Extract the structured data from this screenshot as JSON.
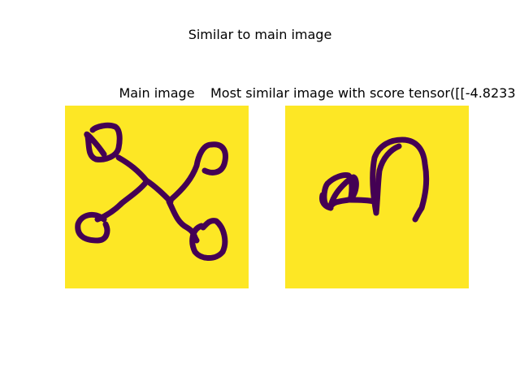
{
  "figure": {
    "suptitle": "Similar to main image"
  },
  "panels": [
    {
      "title": "Main image",
      "glyph": "main-glyph"
    },
    {
      "title": "Most similar image with score tensor([[-4.8233",
      "glyph": "similar-glyph"
    }
  ],
  "colors": {
    "background": "#fde725",
    "stroke": "#440154",
    "figure": "#ffffff"
  },
  "chart_data": [
    {
      "type": "heatmap",
      "title": "Main image",
      "colormap": "viridis",
      "axes": "off"
    },
    {
      "type": "heatmap",
      "title": "Most similar image with score tensor([[-4.8233",
      "colormap": "viridis",
      "axes": "off"
    }
  ]
}
